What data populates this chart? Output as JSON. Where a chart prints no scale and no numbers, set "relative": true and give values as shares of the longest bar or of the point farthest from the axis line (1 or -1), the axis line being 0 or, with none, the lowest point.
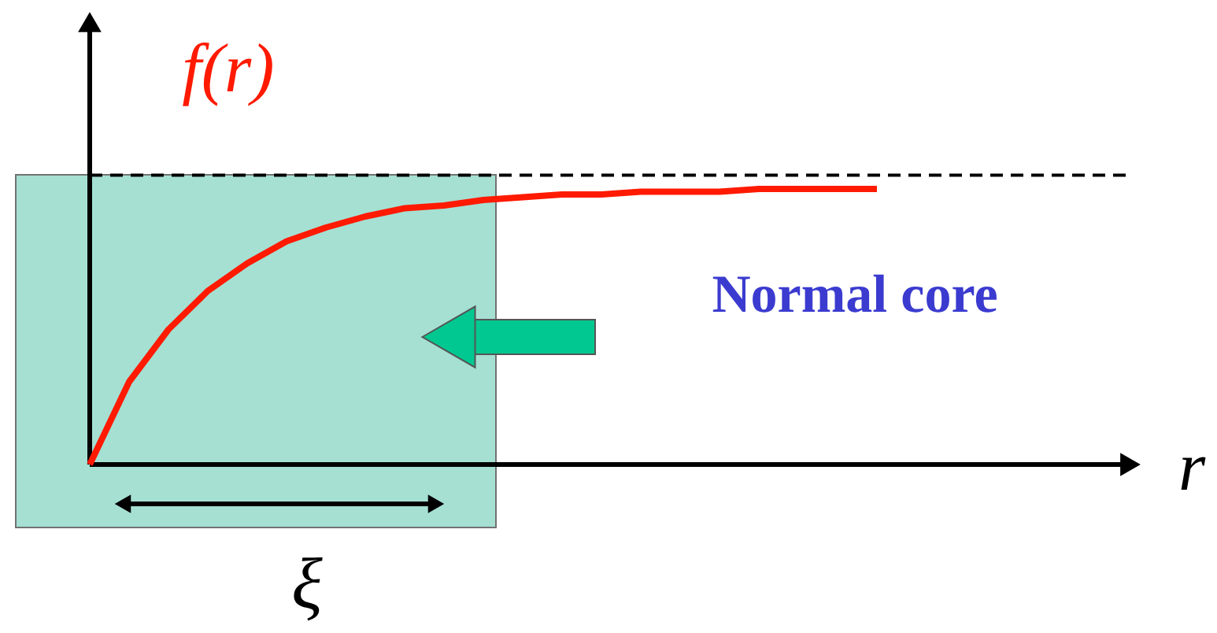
{
  "chart_data": {
    "type": "line",
    "relative": true,
    "xlabel": "r",
    "ylabel": "f(r)",
    "categories": [
      null,
      null,
      null,
      null,
      null,
      null,
      null,
      null,
      null,
      null,
      null,
      null,
      null,
      null,
      null,
      null,
      null,
      null,
      null,
      null,
      null
    ],
    "series": [
      {
        "color": "#ff1a00",
        "values": [
          0,
          0.3,
          0.49,
          0.63,
          0.73,
          0.81,
          0.86,
          0.9,
          0.93,
          0.94,
          0.96,
          0.97,
          0.98,
          0.98,
          0.99,
          0.99,
          0.99,
          1,
          1,
          1,
          1
        ]
      }
    ],
    "ref_lines": [
      {
        "axis": "y",
        "value": 1.05,
        "color": "#000000",
        "line_style": "dashed"
      }
    ],
    "annotations": [
      "Normal core",
      "ξ"
    ],
    "grid": false,
    "marker": "none",
    "line_style": "solid"
  }
}
